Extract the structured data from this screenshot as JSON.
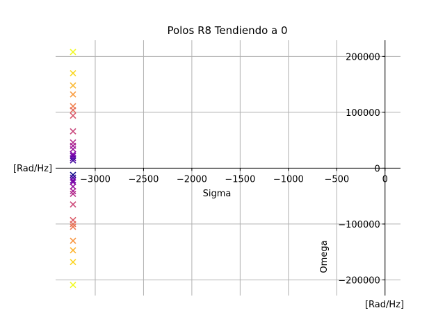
{
  "chart_data": {
    "type": "scatter",
    "title": "Polos R8 Tendiendo a 0",
    "xlabel": "Sigma",
    "ylabel": "Omega",
    "x_unit": "[Rad/Hz]",
    "y_unit": "[Rad/Hz]",
    "xlim": [
      -3410,
      160
    ],
    "ylim": [
      -228000,
      229000
    ],
    "grid": true,
    "marker": "x",
    "colormap": "plasma",
    "x_ticks": [
      -3000,
      -2500,
      -2000,
      -1500,
      -1000,
      -500,
      0
    ],
    "x_tick_labels": [
      "−3000",
      "−2500",
      "−2000",
      "−1500",
      "−1000",
      "−500",
      "0"
    ],
    "y_ticks": [
      -200000,
      -100000,
      0,
      100000,
      200000
    ],
    "y_tick_labels": [
      "−200000",
      "−100000",
      "0",
      "100000",
      "200000"
    ],
    "points": [
      {
        "x": -3230,
        "y": 208000,
        "color": "#f0f921"
      },
      {
        "x": -3230,
        "y": 170000,
        "color": "#f9d724"
      },
      {
        "x": -3230,
        "y": 148000,
        "color": "#fbb831"
      },
      {
        "x": -3230,
        "y": 132000,
        "color": "#f99b3e"
      },
      {
        "x": -3230,
        "y": 111000,
        "color": "#f1824d"
      },
      {
        "x": -3230,
        "y": 104000,
        "color": "#e56b5d"
      },
      {
        "x": -3230,
        "y": 94000,
        "color": "#d8576b"
      },
      {
        "x": -3230,
        "y": 66000,
        "color": "#c8447a"
      },
      {
        "x": -3230,
        "y": 46000,
        "color": "#b52f8c"
      },
      {
        "x": -3230,
        "y": 40000,
        "color": "#a72197"
      },
      {
        "x": -3230,
        "y": 34000,
        "color": "#9c179e"
      },
      {
        "x": -3230,
        "y": 25000,
        "color": "#8606a6"
      },
      {
        "x": -3230,
        "y": 22000,
        "color": "#7201a8"
      },
      {
        "x": -3230,
        "y": 18000,
        "color": "#5c01a6"
      },
      {
        "x": -3230,
        "y": 14000,
        "color": "#3e049c"
      },
      {
        "x": -3230,
        "y": -12000,
        "color": "#0d0887"
      },
      {
        "x": -3230,
        "y": -17000,
        "color": "#41049d"
      },
      {
        "x": -3230,
        "y": -22000,
        "color": "#6a00a8"
      },
      {
        "x": -3230,
        "y": -25000,
        "color": "#7e03a8"
      },
      {
        "x": -3230,
        "y": -33000,
        "color": "#9512a1"
      },
      {
        "x": -3230,
        "y": -41000,
        "color": "#a82296"
      },
      {
        "x": -3230,
        "y": -46000,
        "color": "#b83289"
      },
      {
        "x": -3230,
        "y": -65000,
        "color": "#cc4778"
      },
      {
        "x": -3230,
        "y": -93000,
        "color": "#da5b69"
      },
      {
        "x": -3230,
        "y": -100000,
        "color": "#e76f5a"
      },
      {
        "x": -3230,
        "y": -105000,
        "color": "#ed7953"
      },
      {
        "x": -3230,
        "y": -130000,
        "color": "#f89540"
      },
      {
        "x": -3230,
        "y": -147000,
        "color": "#fdb42f"
      },
      {
        "x": -3230,
        "y": -168000,
        "color": "#fbd524"
      },
      {
        "x": -3230,
        "y": -209000,
        "color": "#f0f921"
      }
    ]
  }
}
